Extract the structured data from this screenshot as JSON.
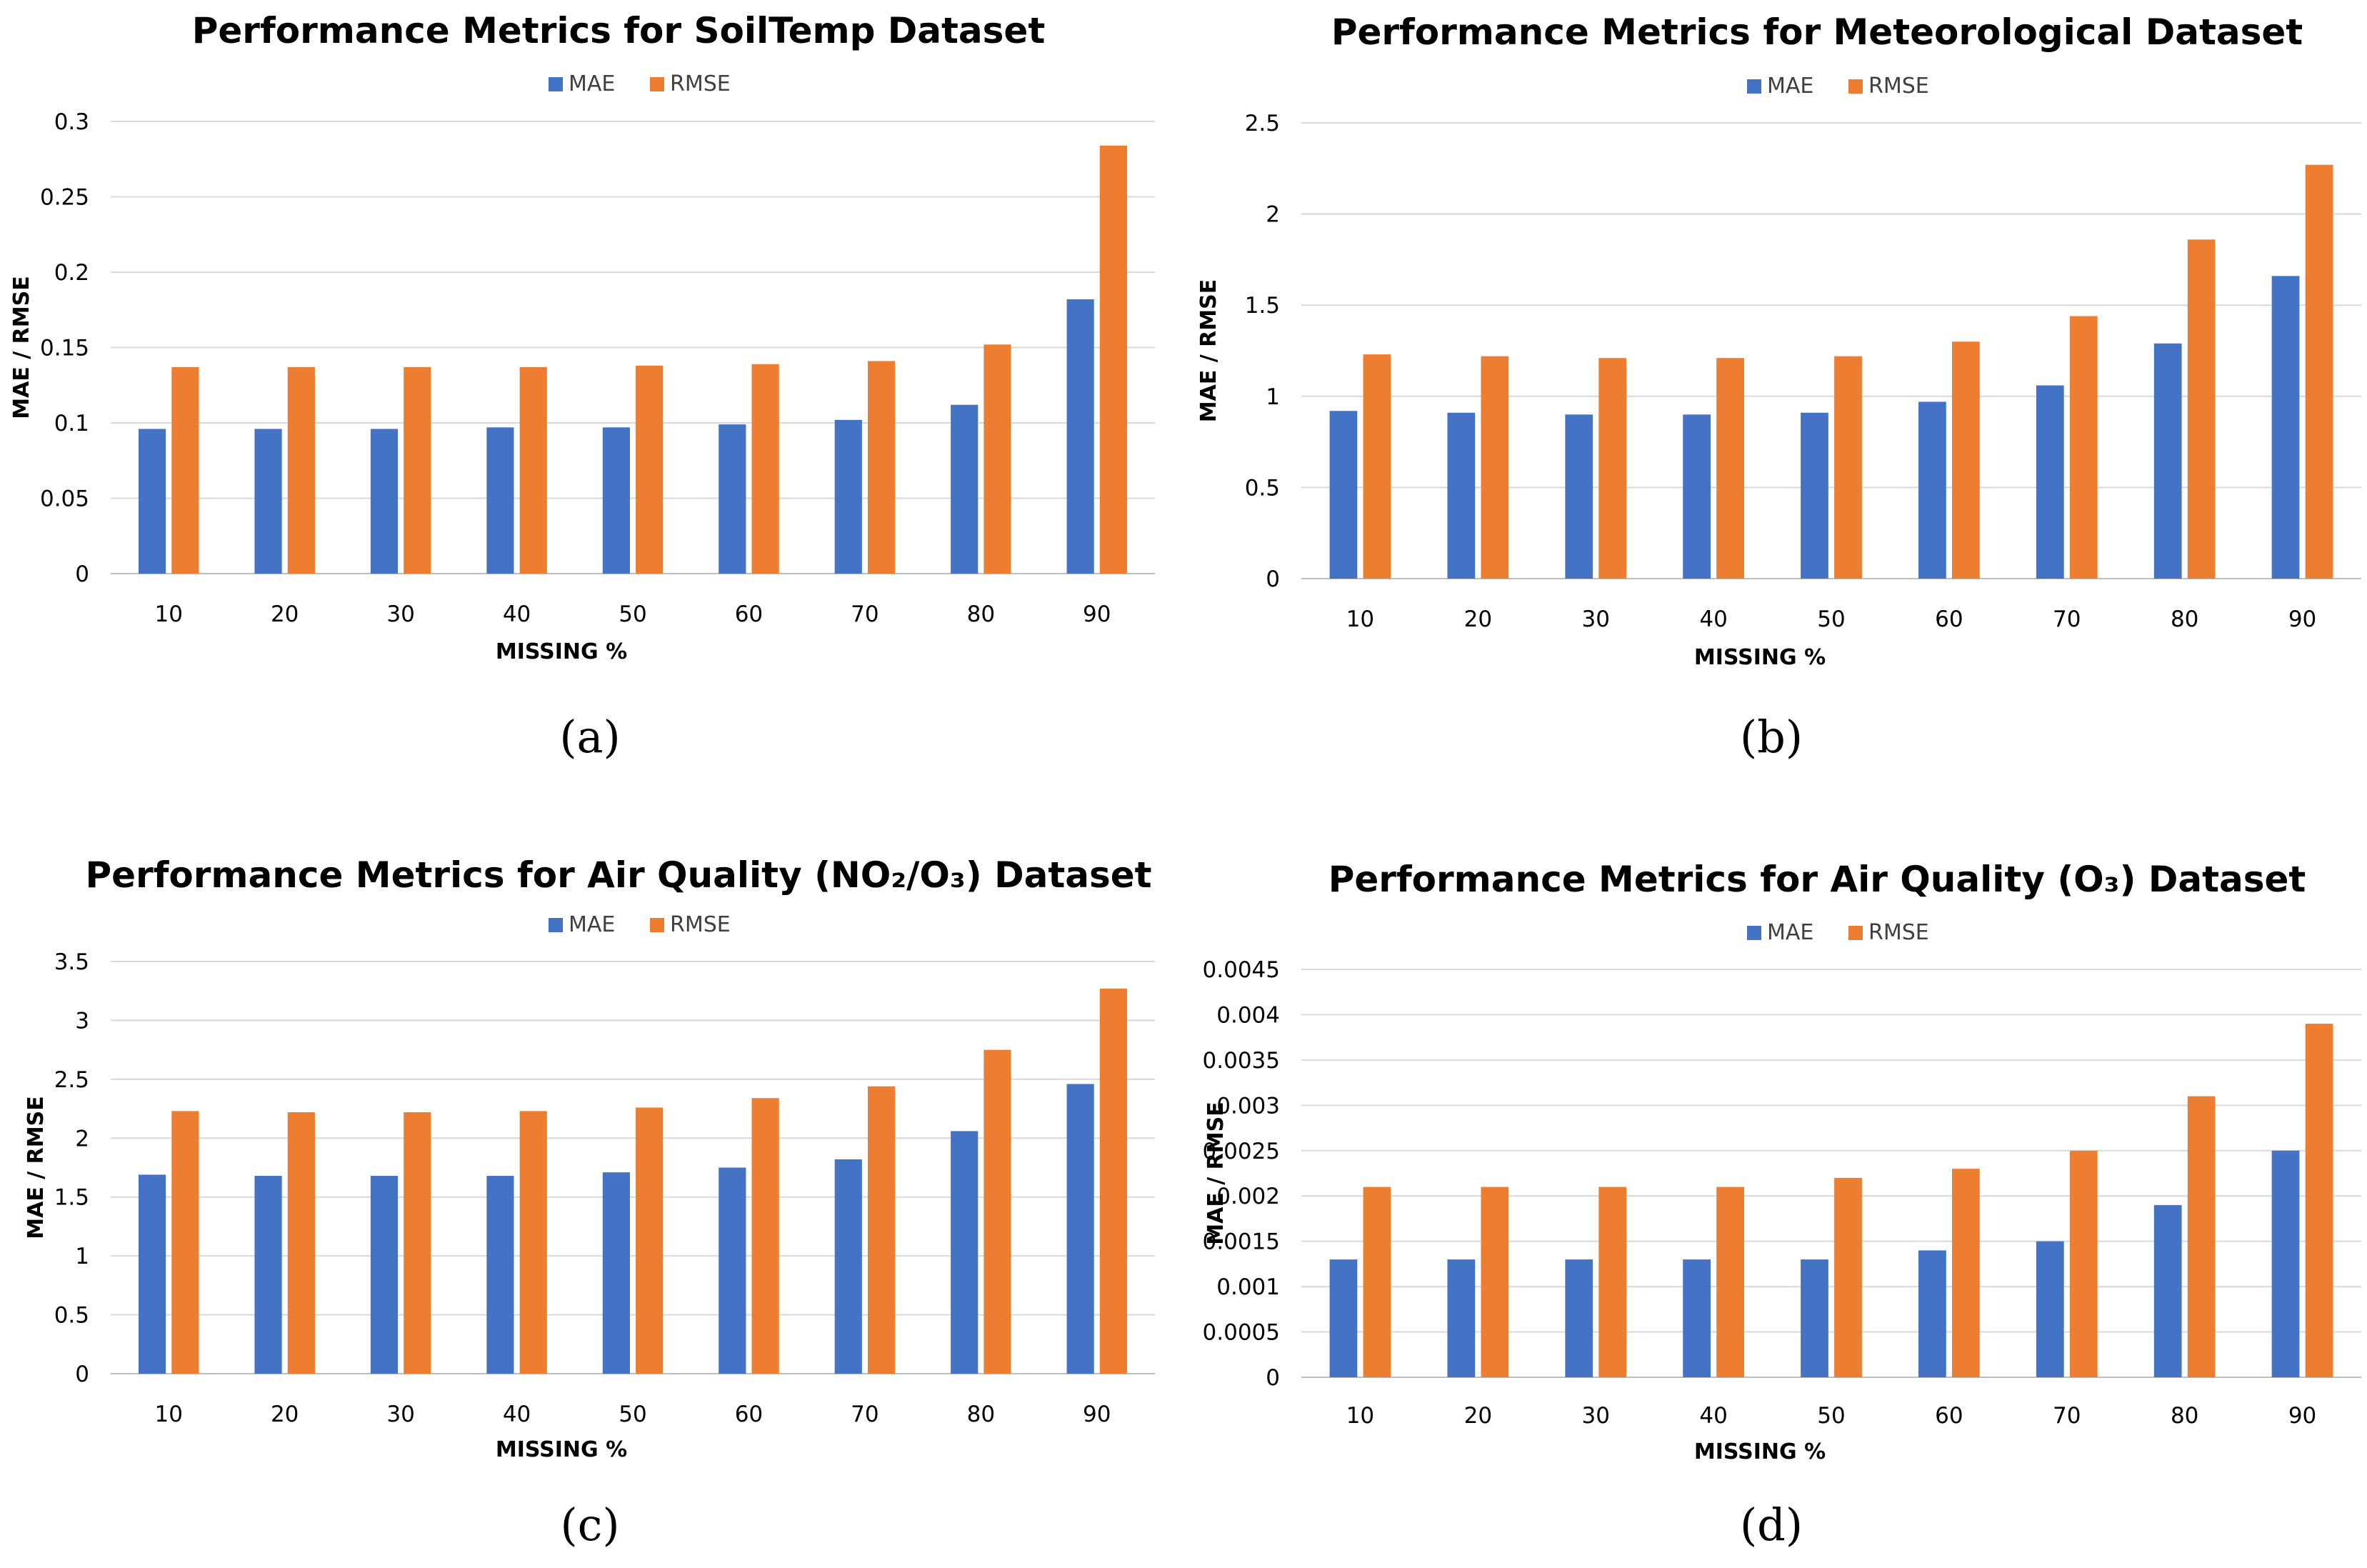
{
  "colors": {
    "mae": "#4472C4",
    "rmse": "#ED7D31",
    "grid": "#D9D9D9"
  },
  "chart_data": [
    {
      "type": "bar",
      "title": "Performance Metrics for SoilTemp Dataset",
      "xlabel": "MISSING %",
      "ylabel": "MAE / RMSE",
      "categories": [
        "10",
        "20",
        "30",
        "40",
        "50",
        "60",
        "70",
        "80",
        "90"
      ],
      "ylim": [
        0,
        0.3
      ],
      "yticks": [
        "0",
        "0.05",
        "0.1",
        "0.15",
        "0.2",
        "0.25",
        "0.3"
      ],
      "legend": "top",
      "grid": true,
      "series": [
        {
          "name": "MAE",
          "values": [
            0.096,
            0.096,
            0.096,
            0.097,
            0.097,
            0.099,
            0.102,
            0.112,
            0.182
          ]
        },
        {
          "name": "RMSE",
          "values": [
            0.137,
            0.137,
            0.137,
            0.137,
            0.138,
            0.139,
            0.141,
            0.152,
            0.284
          ]
        }
      ]
    },
    {
      "type": "bar",
      "title": "Performance Metrics for Meteorological Dataset",
      "xlabel": "MISSING %",
      "ylabel": "MAE / RMSE",
      "categories": [
        "10",
        "20",
        "30",
        "40",
        "50",
        "60",
        "70",
        "80",
        "90"
      ],
      "ylim": [
        0,
        2.5
      ],
      "yticks": [
        "0",
        "0.5",
        "1",
        "1.5",
        "2",
        "2.5"
      ],
      "legend": "top",
      "grid": true,
      "series": [
        {
          "name": "MAE",
          "values": [
            0.92,
            0.91,
            0.9,
            0.9,
            0.91,
            0.97,
            1.06,
            1.29,
            1.66
          ]
        },
        {
          "name": "RMSE",
          "values": [
            1.23,
            1.22,
            1.21,
            1.21,
            1.22,
            1.3,
            1.44,
            1.86,
            2.27
          ]
        }
      ]
    },
    {
      "type": "bar",
      "title": "Performance Metrics for Air Quality (NO₂/O₃) Dataset",
      "xlabel": "MISSING %",
      "ylabel": "MAE / RMSE",
      "categories": [
        "10",
        "20",
        "30",
        "40",
        "50",
        "60",
        "70",
        "80",
        "90"
      ],
      "ylim": [
        0,
        3.5
      ],
      "yticks": [
        "0",
        "0.5",
        "1",
        "1.5",
        "2",
        "2.5",
        "3",
        "3.5"
      ],
      "legend": "top",
      "grid": true,
      "series": [
        {
          "name": "MAE",
          "values": [
            1.69,
            1.68,
            1.68,
            1.68,
            1.71,
            1.75,
            1.82,
            2.06,
            2.46
          ]
        },
        {
          "name": "RMSE",
          "values": [
            2.23,
            2.22,
            2.22,
            2.23,
            2.26,
            2.34,
            2.44,
            2.75,
            3.27
          ]
        }
      ]
    },
    {
      "type": "bar",
      "title": "Performance Metrics for Air Quality (O₃) Dataset",
      "xlabel": "MISSING %",
      "ylabel": "MAE / RMSE",
      "categories": [
        "10",
        "20",
        "30",
        "40",
        "50",
        "60",
        "70",
        "80",
        "90"
      ],
      "ylim": [
        0,
        0.0045
      ],
      "yticks": [
        "0",
        "0.0005",
        "0.001",
        "0.0015",
        "0.002",
        "0.0025",
        "0.003",
        "0.0035",
        "0.004",
        "0.0045"
      ],
      "legend": "top",
      "grid": true,
      "series": [
        {
          "name": "MAE",
          "values": [
            0.0013,
            0.0013,
            0.0013,
            0.0013,
            0.0013,
            0.0014,
            0.0015,
            0.0019,
            0.0025
          ]
        },
        {
          "name": "RMSE",
          "values": [
            0.0021,
            0.0021,
            0.0021,
            0.0021,
            0.0022,
            0.0023,
            0.0025,
            0.0031,
            0.0039
          ]
        }
      ]
    }
  ],
  "captions": [
    "(a)",
    "(b)",
    "(c)",
    "(d)"
  ]
}
